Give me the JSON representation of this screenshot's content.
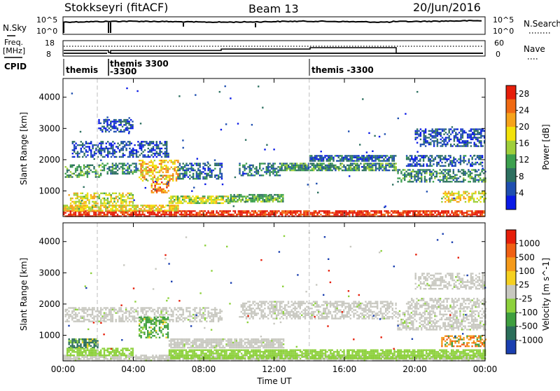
{
  "header": {
    "title": "Stokkseyri (fitACF)",
    "beam": "Beam 13",
    "date": "20/Jun/2016"
  },
  "panels": {
    "nsky": {
      "left_label": "N.Sky",
      "right_label": "N.Search",
      "y_ticks_left": [
        "10^5",
        "10^0"
      ],
      "y_ticks_right": [
        "10^5",
        "10^0"
      ]
    },
    "freq": {
      "left_label_1": "Freq.",
      "left_label_2": "[MHz]",
      "right_label": "Nave",
      "y_ticks_left": [
        "18",
        "8"
      ],
      "y_ticks_right": [
        "60",
        "0"
      ]
    },
    "cpid": {
      "label": "CPID",
      "entries": [
        "themis",
        "themis 3300",
        "-3300",
        "themis -3300"
      ]
    }
  },
  "chart_data": [
    {
      "type": "heatmap",
      "name": "power",
      "ylabel": "Slant Range [km]",
      "xlabel": "",
      "x_ticks": [
        "00:00",
        "04:00",
        "08:00",
        "12:00",
        "16:00",
        "20:00",
        "00:00"
      ],
      "y_ticks": [
        1000,
        2000,
        3000,
        4000
      ],
      "ylim": [
        180,
        4600
      ],
      "xlim_hours": [
        0,
        24
      ],
      "colorbar": {
        "label": "Power [dB]",
        "ticks": [
          4,
          8,
          12,
          16,
          20,
          24,
          28
        ],
        "range": [
          0,
          30
        ],
        "colors": [
          "#0a1ae6",
          "#1f4fb0",
          "#2d7060",
          "#3ca04e",
          "#9fcf3a",
          "#f2e20a",
          "#f6a31b",
          "#f06a13",
          "#e61e0a"
        ]
      },
      "bands": [
        {
          "x0": 0.0,
          "x1": 23.9,
          "r0": 200,
          "r1": 380,
          "value": 29
        },
        {
          "x0": 0.0,
          "x1": 6.5,
          "r0": 380,
          "r1": 560,
          "value": 18
        },
        {
          "x0": 0.1,
          "x1": 2.2,
          "r0": 1450,
          "r1": 1850,
          "value": 11
        },
        {
          "x0": 2.2,
          "x1": 4.3,
          "r0": 1550,
          "r1": 1900,
          "value": 9
        },
        {
          "x0": 4.3,
          "x1": 6.5,
          "r0": 1300,
          "r1": 2000,
          "value": 20
        },
        {
          "x0": 5.0,
          "x1": 6.0,
          "r0": 950,
          "r1": 1300,
          "value": 23
        },
        {
          "x0": 6.5,
          "x1": 9.0,
          "r0": 1400,
          "r1": 1900,
          "value": 7
        },
        {
          "x0": 0.3,
          "x1": 4.0,
          "r0": 600,
          "r1": 950,
          "value": 17
        },
        {
          "x0": 6.0,
          "x1": 9.5,
          "r0": 600,
          "r1": 850,
          "value": 16
        },
        {
          "x0": 9.5,
          "x1": 12.5,
          "r0": 650,
          "r1": 900,
          "value": 12
        },
        {
          "x0": 10.0,
          "x1": 12.3,
          "r0": 1500,
          "r1": 1900,
          "value": 8
        },
        {
          "x0": 12.3,
          "x1": 18.9,
          "r0": 1650,
          "r1": 1900,
          "value": 10
        },
        {
          "x0": 14.0,
          "x1": 18.9,
          "r0": 1950,
          "r1": 2150,
          "value": 6
        },
        {
          "x0": 19.0,
          "x1": 24.0,
          "r0": 1300,
          "r1": 1700,
          "value": 10
        },
        {
          "x0": 19.5,
          "x1": 23.8,
          "r0": 1800,
          "r1": 2150,
          "value": 6
        },
        {
          "x0": 21.5,
          "x1": 24.0,
          "r0": 650,
          "r1": 1000,
          "value": 18
        },
        {
          "x0": 20.0,
          "x1": 24.0,
          "r0": 2450,
          "r1": 3000,
          "value": 5
        },
        {
          "x0": 2.0,
          "x1": 4.0,
          "r0": 2900,
          "r1": 3300,
          "value": 5
        },
        {
          "x0": 0.5,
          "x1": 6.0,
          "r0": 2100,
          "r1": 2600,
          "value": 5
        }
      ]
    },
    {
      "type": "heatmap",
      "name": "velocity",
      "ylabel": "Slant Range [km]",
      "xlabel": "Time UT",
      "x_ticks": [
        "00:00",
        "04:00",
        "08:00",
        "12:00",
        "16:00",
        "20:00",
        "00:00"
      ],
      "y_ticks": [
        1000,
        2000,
        3000,
        4000
      ],
      "ylim": [
        180,
        4600
      ],
      "xlim_hours": [
        0,
        24
      ],
      "colorbar": {
        "label": "Velocity [m s^-1]",
        "ticks": [
          "1000",
          "500",
          "100",
          "25",
          "-25",
          "-100",
          "-500",
          "-1000"
        ],
        "colors": [
          "#1a3fb0",
          "#2b6e5a",
          "#3f9f3f",
          "#8dd13c",
          "#c8c8c0",
          "#f5d020",
          "#f59a1a",
          "#f06013",
          "#e61e0a"
        ]
      },
      "bands": [
        {
          "x0": 0.0,
          "x1": 23.9,
          "r0": 200,
          "r1": 380,
          "value": "gray"
        },
        {
          "x0": 0.1,
          "x1": 9.0,
          "r0": 1450,
          "r1": 1900,
          "value": "gray"
        },
        {
          "x0": 4.3,
          "x1": 6.0,
          "r0": 900,
          "r1": 1600,
          "value": "green"
        },
        {
          "x0": 0.3,
          "x1": 2.0,
          "r0": 600,
          "r1": 900,
          "value": "teal"
        },
        {
          "x0": 0.2,
          "x1": 4.0,
          "r0": 350,
          "r1": 600,
          "value": "lightgreen"
        },
        {
          "x0": 6.0,
          "x1": 12.5,
          "r0": 600,
          "r1": 900,
          "value": "gray"
        },
        {
          "x0": 10.0,
          "x1": 18.9,
          "r0": 1550,
          "r1": 2100,
          "value": "gray"
        },
        {
          "x0": 19.0,
          "x1": 24.0,
          "r0": 1200,
          "r1": 1800,
          "value": "gray"
        },
        {
          "x0": 19.5,
          "x1": 24.0,
          "r0": 1850,
          "r1": 2200,
          "value": "gray"
        },
        {
          "x0": 20.0,
          "x1": 24.0,
          "r0": 2500,
          "r1": 3000,
          "value": "gray"
        },
        {
          "x0": 21.5,
          "x1": 24.0,
          "r0": 650,
          "r1": 1000,
          "value": "orange"
        },
        {
          "x0": 6.0,
          "x1": 24.0,
          "r0": 250,
          "r1": 550,
          "value": "lightgreen"
        }
      ]
    }
  ]
}
